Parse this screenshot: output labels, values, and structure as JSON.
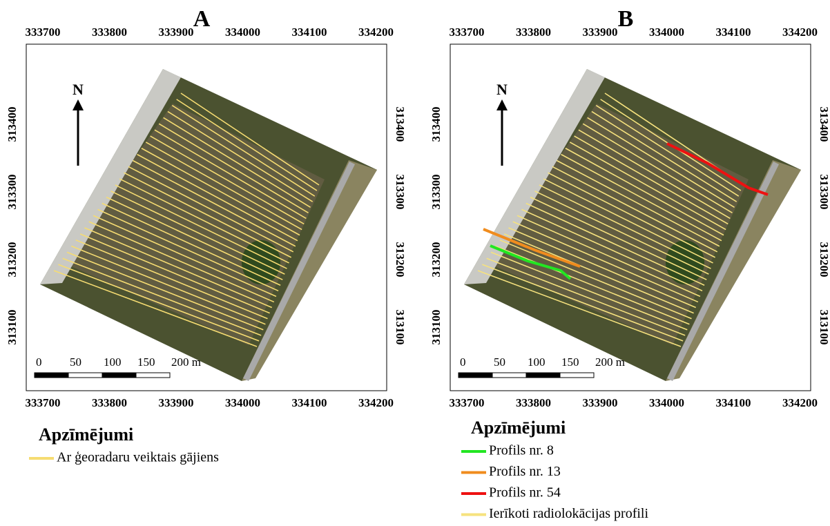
{
  "panels": [
    {
      "label": "A",
      "x_ticks_top": [
        "333700",
        "333800",
        "333900",
        "334000",
        "334100",
        "334200"
      ],
      "x_ticks_bottom": [
        "333700",
        "333800",
        "333900",
        "334000",
        "334100",
        "334200"
      ],
      "y_ticks_left": [
        "313400",
        "313300",
        "313200",
        "313100"
      ],
      "y_ticks_right": [
        "313400",
        "313300",
        "313200",
        "313100"
      ],
      "north": "N",
      "scale_labels": [
        "0",
        "50",
        "100",
        "150",
        "200 m"
      ],
      "legend": {
        "title": "Apzīmējumi",
        "items": [
          {
            "label": "Ar ģeoradaru veiktais gājiens",
            "color": "#f6dc72"
          }
        ]
      }
    },
    {
      "label": "B",
      "x_ticks_top": [
        "333700",
        "333800",
        "333900",
        "334000",
        "334100",
        "334200"
      ],
      "x_ticks_bottom": [
        "333700",
        "333800",
        "333900",
        "334000",
        "334100",
        "334200"
      ],
      "y_ticks_left": [
        "313400",
        "313300",
        "313200",
        "313100"
      ],
      "y_ticks_right": [
        "313400",
        "313300",
        "313200",
        "313100"
      ],
      "north": "N",
      "scale_labels": [
        "0",
        "50",
        "100",
        "150",
        "200 m"
      ],
      "legend": {
        "title": "Apzīmējumi",
        "items": [
          {
            "label": "Profils nr. 8",
            "color": "#22e622"
          },
          {
            "label": "Profils nr. 13",
            "color": "#f08c1e"
          },
          {
            "label": "Profils nr. 54",
            "color": "#ee1111"
          },
          {
            "label": "Ierīkoti radiolokācijas profili",
            "color": "#f6e27e"
          }
        ]
      }
    }
  ]
}
